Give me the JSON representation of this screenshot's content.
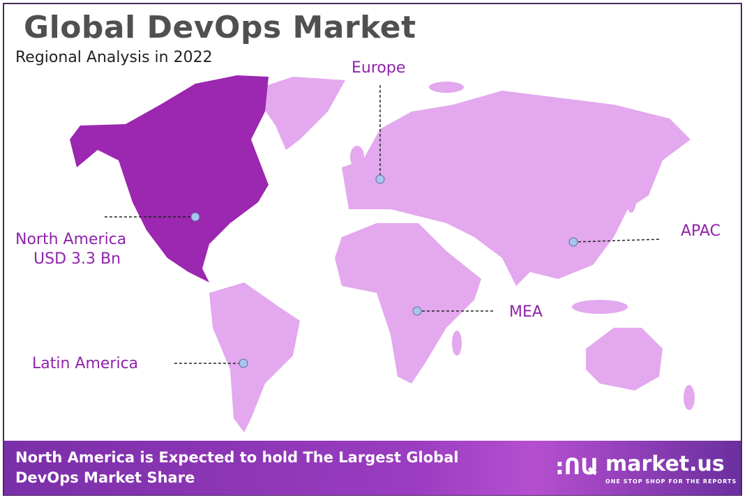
{
  "header": {
    "title": "Global DevOps Market",
    "subtitle": "Regional Analysis in 2022"
  },
  "colors": {
    "highlight_region": "#9c27b0",
    "other_regions": "#e3a8ee",
    "label": "#8e24aa",
    "marker": "#a9c4ee"
  },
  "regions": [
    {
      "name": "North America",
      "value": "USD 3.3 Bn",
      "highlighted": true
    },
    {
      "name": "Europe"
    },
    {
      "name": "APAC"
    },
    {
      "name": "MEA"
    },
    {
      "name": "Latin America"
    }
  ],
  "banner": {
    "line1": "North America is Expected to hold The Largest Global",
    "line2": "DevOps Market Share"
  },
  "logo": {
    "name": "market.us",
    "tagline": "ONE STOP SHOP FOR THE REPORTS"
  }
}
